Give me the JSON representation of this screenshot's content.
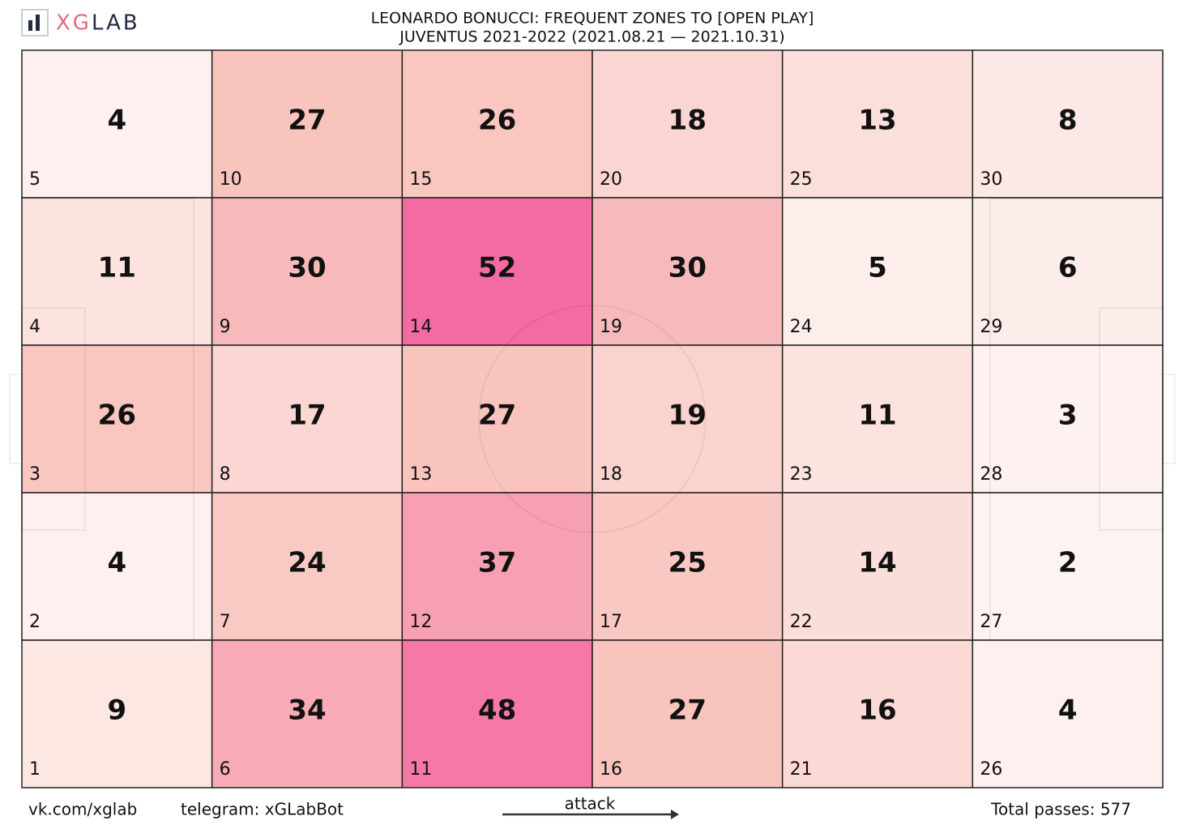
{
  "chart_data": {
    "type": "heatmap",
    "brand": [
      "XG",
      "LAB"
    ],
    "title": "LEONARDO BONUCCI: FREQUENT ZONES TO [OPEN PLAY]",
    "subtitle": "JUVENTUS 2021-2022 (2021.08.21 — 2021.10.31)",
    "values": [
      [
        4,
        27,
        26,
        18,
        13,
        8
      ],
      [
        11,
        30,
        52,
        30,
        5,
        6
      ],
      [
        26,
        17,
        27,
        19,
        11,
        3
      ],
      [
        4,
        24,
        37,
        25,
        14,
        2
      ],
      [
        9,
        34,
        48,
        27,
        16,
        4
      ]
    ],
    "zones": [
      [
        5,
        10,
        15,
        20,
        25,
        30
      ],
      [
        4,
        9,
        14,
        19,
        24,
        29
      ],
      [
        3,
        8,
        13,
        18,
        23,
        28
      ],
      [
        2,
        7,
        12,
        17,
        22,
        27
      ],
      [
        1,
        6,
        11,
        16,
        21,
        26
      ]
    ],
    "colormap": [
      "#fdf4f2",
      "#f9c4be",
      "#f46aa3"
    ],
    "footer": {
      "vk": "vk.com/xglab",
      "telegram": "telegram: xGLabBot",
      "direction": "attack",
      "total": "Total passes: 577"
    }
  }
}
